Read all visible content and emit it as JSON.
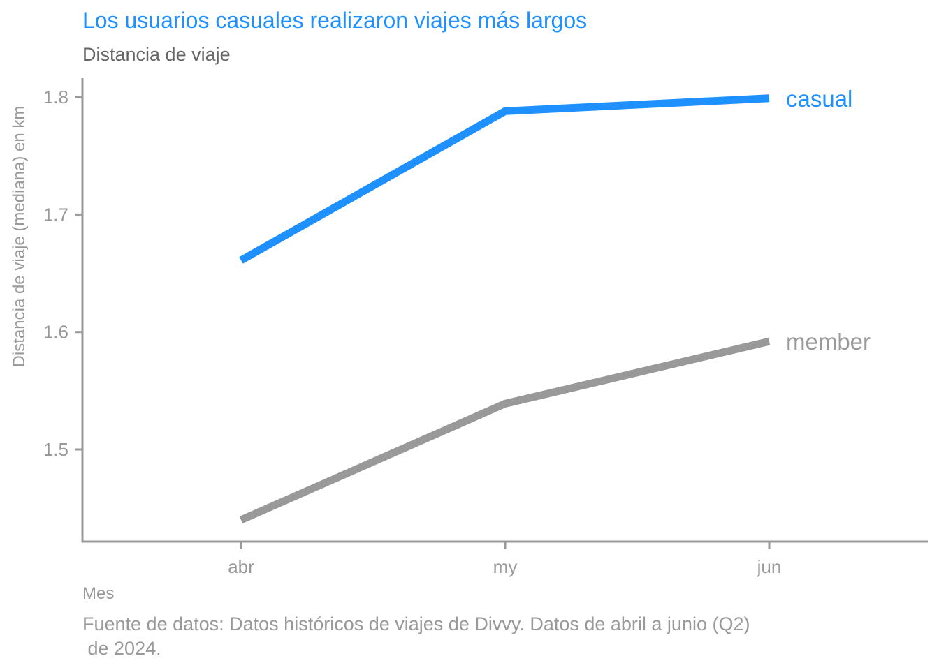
{
  "chart_data": {
    "type": "line",
    "title": "Los usuarios casuales realizaron viajes más largos",
    "subtitle": "Distancia de viaje",
    "xlabel": "Mes",
    "ylabel": "Distancia de viaje (mediana) en km",
    "caption_lines": [
      "Fuente de datos: Datos históricos de viajes de Divvy. Datos de abril a junio (Q2)",
      " de 2024."
    ],
    "categories": [
      "abr",
      "my",
      "jun"
    ],
    "yticks": [
      1.5,
      1.6,
      1.7,
      1.8
    ],
    "ytick_labels": [
      "1.5",
      "1.6",
      "1.7",
      "1.8"
    ],
    "ylim": [
      1.422,
      1.817
    ],
    "grid": false,
    "legend": "direct labels at line ends (right)",
    "series": [
      {
        "name": "casual",
        "values": [
          1.661,
          1.788,
          1.799
        ],
        "color": "#1E90FF"
      },
      {
        "name": "member",
        "values": [
          1.44,
          1.539,
          1.592
        ],
        "color": "#999999"
      }
    ],
    "colors": {
      "title": "#1E90FF",
      "subtitle": "#666666",
      "axis": "#999999",
      "text_muted": "#999999"
    }
  }
}
